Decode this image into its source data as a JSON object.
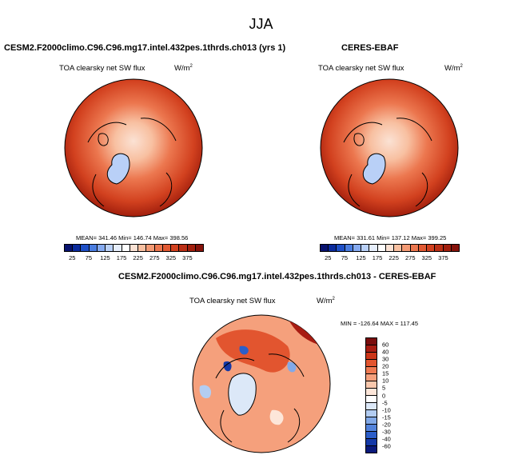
{
  "figure": {
    "season": "JJA"
  },
  "panels": [
    {
      "title": "CESM2.F2000climo.C96.C96.mg17.intel.432pes.1thrds.ch013 (yrs 1)",
      "variable": "TOA clearsky net SW flux",
      "units": "W/m",
      "units_sup": "2",
      "stats": "MEAN= 341.46  Min= 146.74  Max= 398.56"
    },
    {
      "title": "CERES-EBAF",
      "variable": "TOA clearsky net SW flux",
      "units": "W/m",
      "units_sup": "2",
      "stats": "MEAN= 331.61  Min= 137.12  Max= 399.25"
    },
    {
      "title": "CESM2.F2000climo.C96.C96.mg17.intel.432pes.1thrds.ch013 - CERES-EBAF",
      "variable": "TOA clearsky net SW flux",
      "units": "W/m",
      "units_sup": "2",
      "stats": "MIN = -126.64 MAX = 117.45"
    }
  ],
  "colorbar_top": {
    "labels": [
      "25",
      "75",
      "125",
      "175",
      "225",
      "275",
      "325",
      "375"
    ],
    "colors": [
      "#08126e",
      "#0a2a9c",
      "#1e4fc6",
      "#4a7de0",
      "#85aaf0",
      "#b9d0f7",
      "#e6eefc",
      "#ffffff",
      "#fbe2d4",
      "#f8c0a1",
      "#f39a74",
      "#ec774f",
      "#e25a33",
      "#d2411f",
      "#bb2f15",
      "#a21f0d",
      "#85120a"
    ]
  },
  "colorbar_diff": {
    "labels": [
      "60",
      "40",
      "30",
      "20",
      "15",
      "10",
      "5",
      "0",
      "-5",
      "-10",
      "-15",
      "-20",
      "-30",
      "-40",
      "-60"
    ],
    "colors": [
      "#7a0d0d",
      "#a81c12",
      "#cc3518",
      "#e2552f",
      "#ef7a52",
      "#f5a07c",
      "#f9c8ad",
      "#fde6d9",
      "#ffffff",
      "#dce8f8",
      "#b3cdf2",
      "#82a9e8",
      "#5383db",
      "#2c5ec9",
      "#1439a8",
      "#0a1a7c"
    ]
  }
}
